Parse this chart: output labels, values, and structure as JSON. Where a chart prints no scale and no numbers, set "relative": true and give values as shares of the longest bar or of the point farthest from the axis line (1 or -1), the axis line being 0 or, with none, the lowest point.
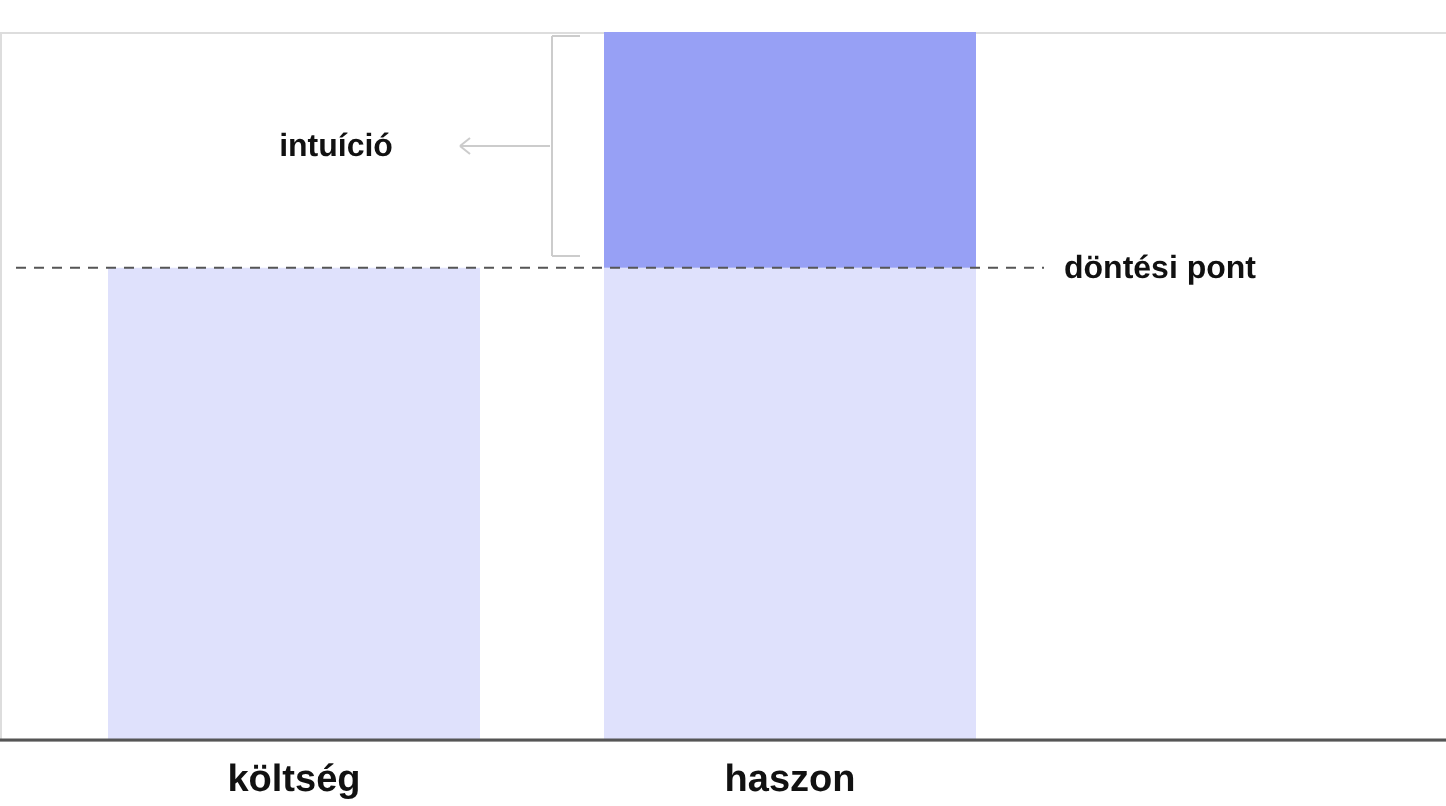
{
  "chart_data": {
    "type": "bar",
    "relative": true,
    "stacked": true,
    "categories": [
      "költség",
      "haszon"
    ],
    "series": [
      {
        "color": "#dfe1fc",
        "values": [
          0.667,
          0.667
        ]
      },
      {
        "color": "#97a0f5",
        "values": [
          null,
          0.333
        ]
      }
    ],
    "ref_lines": [
      {
        "axis": "y",
        "value": 0.667,
        "label": "döntési pont",
        "line_style": "dashed",
        "color": "#555555"
      }
    ],
    "annotations": [
      "intuíció"
    ]
  }
}
